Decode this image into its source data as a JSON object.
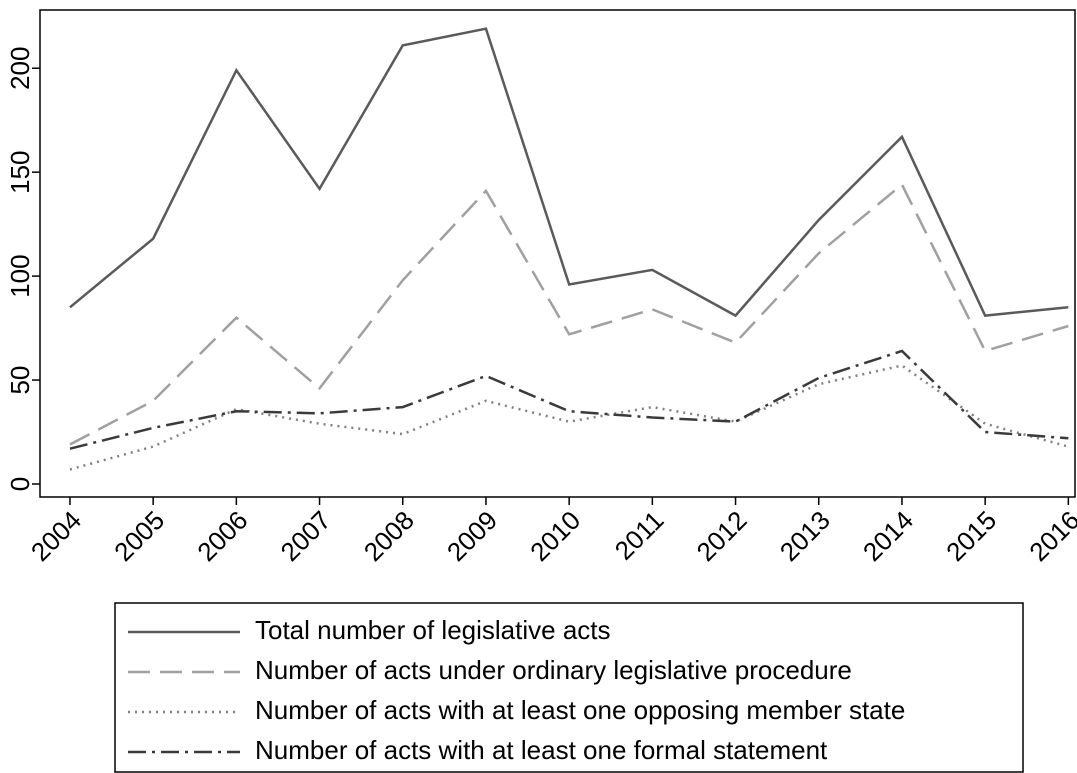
{
  "chart_data": {
    "type": "line",
    "x": [
      2004,
      2005,
      2006,
      2007,
      2008,
      2009,
      2010,
      2011,
      2012,
      2013,
      2014,
      2015,
      2016
    ],
    "series": [
      {
        "name": "Total number of legislative acts",
        "color": "#5a5a5a",
        "dash": "solid",
        "values": [
          85,
          118,
          199,
          142,
          211,
          219,
          96,
          103,
          81,
          127,
          167,
          81,
          85
        ]
      },
      {
        "name": "Number of acts under ordinary legislative procedure",
        "color": "#a0a0a0",
        "dash": "dashed",
        "values": [
          19,
          40,
          80,
          46,
          98,
          141,
          72,
          84,
          68,
          111,
          144,
          64,
          76
        ]
      },
      {
        "name": "Number of acts with at least one opposing member state",
        "color": "#808080",
        "dash": "dotted",
        "values": [
          7,
          18,
          36,
          29,
          24,
          40,
          30,
          37,
          30,
          48,
          57,
          29,
          18
        ]
      },
      {
        "name": "Number of acts with at least one formal statement",
        "color": "#3a3a3a",
        "dash": "dashdot",
        "values": [
          17,
          27,
          35,
          34,
          37,
          52,
          35,
          32,
          30,
          51,
          64,
          25,
          22
        ]
      }
    ],
    "xlim": [
      2003.64,
      2016.08
    ],
    "xticks": [
      2004,
      2005,
      2006,
      2007,
      2008,
      2009,
      2010,
      2011,
      2012,
      2013,
      2014,
      2015,
      2016
    ],
    "ylim": [
      -6.25,
      228
    ],
    "yticks": [
      0,
      50,
      100,
      150,
      200
    ],
    "grid": false,
    "legend": "bottom"
  }
}
